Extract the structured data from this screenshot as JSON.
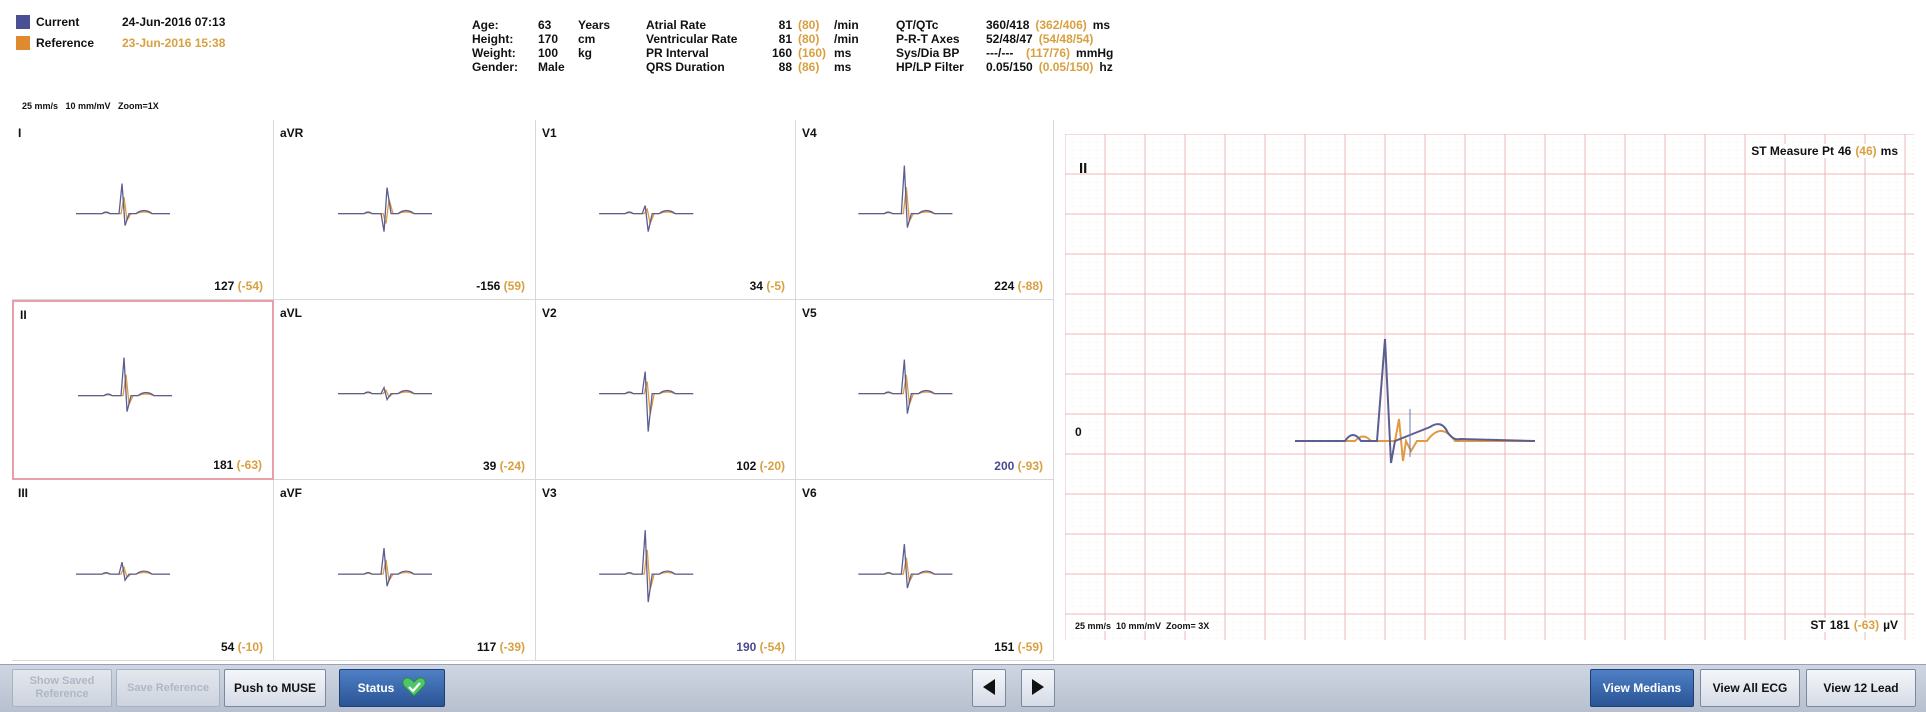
{
  "header": {
    "legend": [
      {
        "label": "Current",
        "date": "24-Jun-2016 07:13",
        "color": "#4b4f94"
      },
      {
        "label": "Reference",
        "date": "23-Jun-2016 15:38",
        "color": "#e08a30"
      }
    ],
    "scale_text": "25 mm/s   10 mm/mV   Zoom=1X",
    "patient": [
      {
        "label": "Age:",
        "value": "63",
        "unit": "Years"
      },
      {
        "label": "Height:",
        "value": "170",
        "unit": "cm"
      },
      {
        "label": "Weight:",
        "value": "100",
        "unit": "kg"
      },
      {
        "label": "Gender:",
        "value": "Male",
        "unit": ""
      }
    ],
    "intervals": [
      {
        "label": "Atrial Rate",
        "cur": "81",
        "ref": "(80)",
        "unit": "/min"
      },
      {
        "label": "Ventricular Rate",
        "cur": "81",
        "ref": "(80)",
        "unit": "/min"
      },
      {
        "label": "PR Interval",
        "cur": "160",
        "ref": "(160)",
        "unit": "ms"
      },
      {
        "label": "QRS Duration",
        "cur": "88",
        "ref": "(86)",
        "unit": "ms"
      }
    ],
    "measures": [
      {
        "label": "QT/QTc",
        "cur": "360/418",
        "ref": "(362/406)",
        "unit": "ms"
      },
      {
        "label": "P-R-T Axes",
        "cur": "52/48/47",
        "ref": "(54/48/54)",
        "unit": ""
      },
      {
        "label": "Sys/Dia BP",
        "cur": "---/---",
        "ref": "(117/76)",
        "unit": "mmHg"
      },
      {
        "label": "HP/LP Filter",
        "cur": "0.05/150",
        "ref": "(0.05/150)",
        "unit": "hz"
      }
    ]
  },
  "leads": [
    {
      "name": "I",
      "cur": "127",
      "ref": "(-54)"
    },
    {
      "name": "aVR",
      "cur": "-156",
      "ref": "(59)"
    },
    {
      "name": "V1",
      "cur": "34",
      "ref": "(-5)"
    },
    {
      "name": "V4",
      "cur": "224",
      "ref": "(-88)"
    },
    {
      "name": "II",
      "cur": "181",
      "ref": "(-63)"
    },
    {
      "name": "aVL",
      "cur": "39",
      "ref": "(-24)"
    },
    {
      "name": "V2",
      "cur": "102",
      "ref": "(-20)"
    },
    {
      "name": "V5",
      "cur": "200",
      "ref": "(-93)"
    },
    {
      "name": "III",
      "cur": "54",
      "ref": "(-10)"
    },
    {
      "name": "aVF",
      "cur": "117",
      "ref": "(-39)"
    },
    {
      "name": "V3",
      "cur": "190",
      "ref": "(-54)"
    },
    {
      "name": "V6",
      "cur": "151",
      "ref": "(-59)"
    }
  ],
  "rhythm": {
    "lead": "II",
    "st_measure_label": "ST Measure Pt",
    "st_measure_cur": "46",
    "st_measure_ref": "(46)",
    "st_measure_unit": "ms",
    "zero_label": "0",
    "scale_text": "25 mm/s  10 mm/mV  Zoom= 3X",
    "st_label": "ST",
    "st_cur": "181",
    "st_ref": "(-63)",
    "st_unit": "µV"
  },
  "toolbar": {
    "show_saved_reference": "Show Saved Reference",
    "save_reference": "Save Reference",
    "push_to_muse": "Push to MUSE",
    "status": "Status",
    "view_medians": "View Medians",
    "view_all_ecg": "View All ECG",
    "view_12_lead": "View 12 Lead"
  },
  "colors": {
    "current": "#5b5e92",
    "reference": "#e09a40",
    "grid": "#e8c8c8",
    "grid_major": "#e8b8b8"
  }
}
